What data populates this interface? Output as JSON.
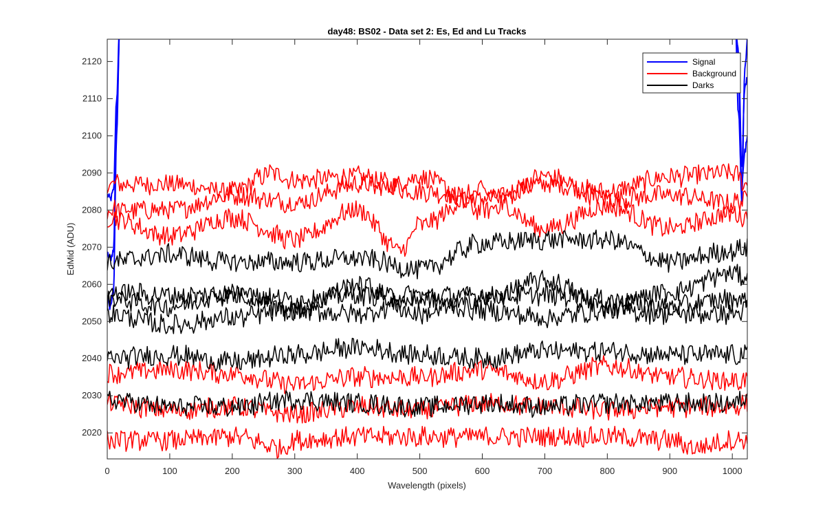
{
  "chart_data": {
    "type": "line",
    "title": "day48: BS02 - Data set 2: Es, Ed and Lu Tracks",
    "xlabel": "Wavelength (pixels)",
    "ylabel": "EdMid (ADU)",
    "xlim": [
      0,
      1024
    ],
    "ylim": [
      2013,
      2126
    ],
    "xticks": [
      0,
      100,
      200,
      300,
      400,
      500,
      600,
      700,
      800,
      900,
      1000
    ],
    "yticks": [
      2020,
      2030,
      2040,
      2050,
      2060,
      2070,
      2080,
      2090,
      2100,
      2110,
      2120
    ],
    "grid": false,
    "legend": {
      "position": "top-right",
      "entries": [
        {
          "label": "Signal",
          "color": "#0000ff"
        },
        {
          "label": "Background",
          "color": "#ff0000"
        },
        {
          "label": "Darks",
          "color": "#000000"
        }
      ]
    },
    "series": [
      {
        "group": "Signal",
        "color": "#0000ff",
        "x": [
          0,
          5,
          10,
          15,
          20,
          1005,
          1010,
          1015,
          1020,
          1024
        ],
        "y": [
          2084,
          2083,
          2085,
          2110,
          2130,
          2130,
          2105,
          2088,
          2095,
          2100
        ]
      },
      {
        "group": "Signal",
        "color": "#0000ff",
        "x": [
          0,
          5,
          10,
          15,
          20,
          1005,
          1010,
          1015,
          1020,
          1024
        ],
        "y": [
          2068,
          2067,
          2069,
          2105,
          2130,
          2130,
          2115,
          2082,
          2118,
          2125
        ]
      },
      {
        "group": "Signal",
        "color": "#0000ff",
        "x": [
          0,
          5,
          10,
          15,
          20,
          1005,
          1010,
          1015,
          1020,
          1024
        ],
        "y": [
          2056,
          2054,
          2058,
          2100,
          2130,
          2130,
          2122,
          2092,
          2112,
          2115
        ]
      },
      {
        "group": "Background",
        "color": "#ff0000",
        "x": [
          0,
          100,
          200,
          265,
          300,
          400,
          500,
          600,
          700,
          800,
          900,
          1000,
          1024
        ],
        "y": [
          2087,
          2087,
          2085,
          2090,
          2088,
          2089,
          2085,
          2083,
          2087,
          2085,
          2089,
          2090,
          2087
        ]
      },
      {
        "group": "Background",
        "color": "#ff0000",
        "x": [
          0,
          100,
          200,
          300,
          400,
          440,
          500,
          600,
          700,
          800,
          900,
          1000,
          1024
        ],
        "y": [
          2080,
          2080,
          2084,
          2082,
          2087,
          2086,
          2089,
          2080,
          2089,
          2083,
          2084,
          2082,
          2083
        ]
      },
      {
        "group": "Background",
        "color": "#ff0000",
        "x": [
          0,
          100,
          200,
          300,
          400,
          470,
          500,
          600,
          700,
          800,
          900,
          1000,
          1024
        ],
        "y": [
          2078,
          2073,
          2078,
          2072,
          2080,
          2069,
          2076,
          2085,
          2075,
          2081,
          2075,
          2079,
          2078
        ]
      },
      {
        "group": "Background",
        "color": "#ff0000",
        "x": [
          0,
          100,
          200,
          300,
          400,
          500,
          600,
          700,
          800,
          900,
          1000,
          1024
        ],
        "y": [
          2036,
          2037,
          2036,
          2033,
          2035,
          2035,
          2037,
          2034,
          2038,
          2035,
          2034,
          2034
        ]
      },
      {
        "group": "Background",
        "color": "#ff0000",
        "x": [
          0,
          100,
          200,
          300,
          400,
          500,
          600,
          700,
          800,
          900,
          1000,
          1024
        ],
        "y": [
          2028,
          2026,
          2027,
          2025,
          2027,
          2026,
          2028,
          2027,
          2026,
          2027,
          2027,
          2028
        ]
      },
      {
        "group": "Background",
        "color": "#ff0000",
        "x": [
          0,
          100,
          200,
          280,
          300,
          400,
          500,
          600,
          700,
          800,
          900,
          940,
          1000,
          1024
        ],
        "y": [
          2018,
          2018,
          2019,
          2016,
          2018,
          2019,
          2019,
          2019,
          2019,
          2019,
          2018,
          2016,
          2018,
          2018
        ]
      },
      {
        "group": "Darks",
        "color": "#000000",
        "x": [
          0,
          100,
          200,
          300,
          400,
          500,
          600,
          700,
          800,
          900,
          1000,
          1024
        ],
        "y": [
          2066,
          2068,
          2066,
          2066,
          2067,
          2064,
          2071,
          2072,
          2072,
          2066,
          2069,
          2070
        ]
      },
      {
        "group": "Darks",
        "color": "#000000",
        "x": [
          0,
          100,
          200,
          300,
          400,
          500,
          600,
          700,
          800,
          900,
          1000,
          1024
        ],
        "y": [
          2058,
          2057,
          2057,
          2056,
          2057,
          2057,
          2057,
          2057,
          2056,
          2054,
          2056,
          2056
        ]
      },
      {
        "group": "Darks",
        "color": "#000000",
        "x": [
          0,
          100,
          200,
          300,
          400,
          500,
          600,
          700,
          800,
          900,
          1000,
          1024
        ],
        "y": [
          2056,
          2054,
          2058,
          2053,
          2060,
          2052,
          2056,
          2061,
          2054,
          2058,
          2063,
          2062
        ]
      },
      {
        "group": "Darks",
        "color": "#000000",
        "x": [
          0,
          100,
          200,
          300,
          400,
          500,
          600,
          700,
          800,
          900,
          1000,
          1024
        ],
        "y": [
          2052,
          2049,
          2051,
          2053,
          2052,
          2056,
          2053,
          2051,
          2053,
          2052,
          2052,
          2053
        ]
      },
      {
        "group": "Darks",
        "color": "#000000",
        "x": [
          0,
          100,
          200,
          300,
          400,
          500,
          600,
          700,
          800,
          900,
          1000,
          1024
        ],
        "y": [
          2040,
          2041,
          2039,
          2041,
          2043,
          2041,
          2040,
          2042,
          2042,
          2041,
          2041,
          2041
        ]
      },
      {
        "group": "Darks",
        "color": "#000000",
        "x": [
          0,
          100,
          200,
          300,
          400,
          500,
          600,
          700,
          800,
          900,
          1000,
          1024
        ],
        "y": [
          2029,
          2027,
          2027,
          2029,
          2028,
          2027,
          2028,
          2027,
          2028,
          2028,
          2028,
          2029
        ]
      }
    ]
  }
}
